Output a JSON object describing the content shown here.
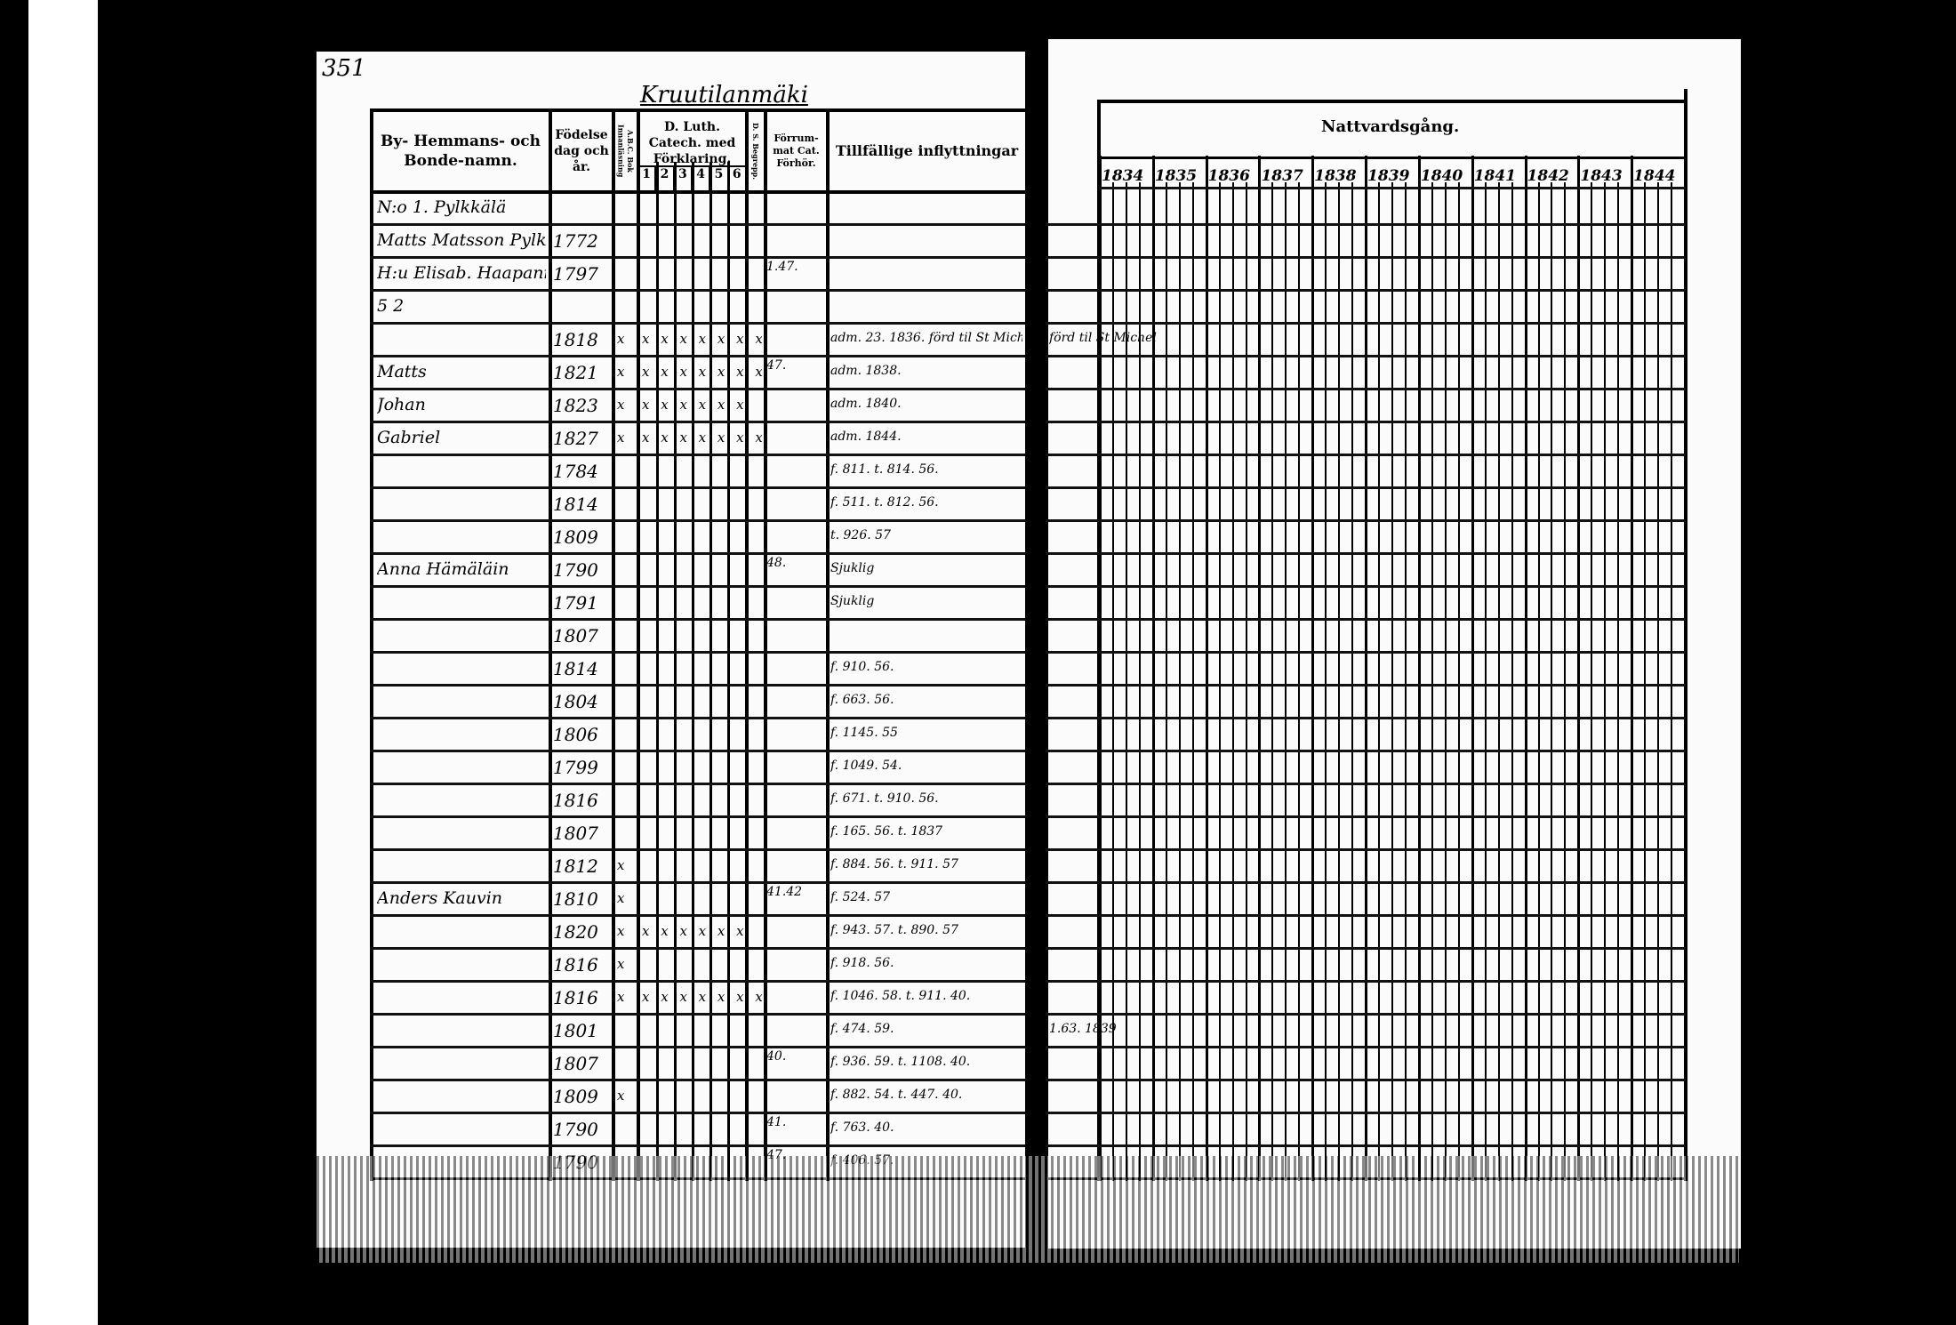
{
  "page_number": "351",
  "village": "Kruutilanmäki",
  "left_header": {
    "name_col": "By- Hemmans- och Bonde-namn.",
    "birth_col": "Födelse dag och år.",
    "abc_col": "A.B.C. Bok Innanläsning",
    "catechism_col": "D. Luth. Catech. med Förklaring.",
    "catechism_subcols": [
      "1",
      "2",
      "3",
      "4",
      "5",
      "6"
    ],
    "d_col": "D. S. Begrepp.",
    "forrum_col": "Förrum- mat Cat. Förhör.",
    "notes_col": "Tillfällige inflyttningar"
  },
  "right_header": {
    "title": "Nattvardsgång.",
    "years": [
      "1834",
      "1835",
      "1836",
      "1837",
      "1838",
      "1839",
      "1840",
      "1841",
      "1842",
      "1843",
      "1844"
    ]
  },
  "rows": [
    {
      "name": "N:o 1. Pylkkälä",
      "year": "",
      "abc": "",
      "cat": "",
      "forrum": "",
      "note": ""
    },
    {
      "name": "Matts Matsson Pylkkäri",
      "year": "1772",
      "abc": "",
      "cat": "",
      "forrum": "",
      "note": ""
    },
    {
      "name": "H:u Elisab. Haapaniemi",
      "year": "1797",
      "abc": "",
      "cat": "",
      "forrum": "1.47.",
      "note": ""
    },
    {
      "name": "5   2",
      "year": "",
      "abc": "",
      "cat": "",
      "forrum": "",
      "note": ""
    },
    {
      "name": "",
      "year": "1818",
      "abc": "x",
      "cat": "x x x x x x x",
      "forrum": "",
      "note": "adm. 23. 1836. förd til St Michel"
    },
    {
      "name": "Matts",
      "year": "1821",
      "abc": "x",
      "cat": "x x x x x x x",
      "forrum": "47.",
      "note": "adm. 1838."
    },
    {
      "name": "Johan",
      "year": "1823",
      "abc": "x",
      "cat": "x x x x x x",
      "forrum": "",
      "note": "adm. 1840."
    },
    {
      "name": "Gabriel",
      "year": "1827",
      "abc": "x",
      "cat": "x x x x x x x",
      "forrum": "",
      "note": "adm. 1844."
    },
    {
      "name": "",
      "year": "1784",
      "abc": "",
      "cat": "",
      "forrum": "",
      "note": "f. 811. t. 814. 56."
    },
    {
      "name": "",
      "year": "1814",
      "abc": "",
      "cat": "",
      "forrum": "",
      "note": "f. 511. t. 812. 56."
    },
    {
      "name": "",
      "year": "1809",
      "abc": "",
      "cat": "",
      "forrum": "",
      "note": "t. 926. 57"
    },
    {
      "name": "Anna Hämäläin",
      "year": "1790",
      "abc": "",
      "cat": "",
      "forrum": "48.",
      "note": "Sjuklig"
    },
    {
      "name": "",
      "year": "1791",
      "abc": "",
      "cat": "",
      "forrum": "",
      "note": "Sjuklig"
    },
    {
      "name": "",
      "year": "1807",
      "abc": "",
      "cat": "",
      "forrum": "",
      "note": ""
    },
    {
      "name": "",
      "year": "1814",
      "abc": "",
      "cat": "",
      "forrum": "",
      "note": "f. 910. 56."
    },
    {
      "name": "",
      "year": "1804",
      "abc": "",
      "cat": "",
      "forrum": "",
      "note": "f. 663. 56."
    },
    {
      "name": "",
      "year": "1806",
      "abc": "",
      "cat": "",
      "forrum": "",
      "note": "f. 1145. 55"
    },
    {
      "name": "",
      "year": "1799",
      "abc": "",
      "cat": "",
      "forrum": "",
      "note": "f. 1049. 54."
    },
    {
      "name": "",
      "year": "1816",
      "abc": "",
      "cat": "",
      "forrum": "",
      "note": "f. 671. t. 910. 56."
    },
    {
      "name": "",
      "year": "1807",
      "abc": "",
      "cat": "",
      "forrum": "",
      "note": "f. 165. 56. t. 1837"
    },
    {
      "name": "",
      "year": "1812",
      "abc": "x",
      "cat": "",
      "forrum": "",
      "note": "f. 884. 56. t. 911. 57"
    },
    {
      "name": "Anders Kauvin",
      "year": "1810",
      "abc": "x",
      "cat": "",
      "forrum": "41.42",
      "note": "f. 524. 57"
    },
    {
      "name": "",
      "year": "1820",
      "abc": "x",
      "cat": "x x x x x x",
      "forrum": "",
      "note": "f. 943. 57. t. 890. 57"
    },
    {
      "name": "",
      "year": "1816",
      "abc": "x",
      "cat": "",
      "forrum": "",
      "note": "f. 918. 56."
    },
    {
      "name": "",
      "year": "1816",
      "abc": "x",
      "cat": "x x x x x x x",
      "forrum": "",
      "note": "f. 1046. 58. t. 911. 40."
    },
    {
      "name": "",
      "year": "1801",
      "abc": "",
      "cat": "",
      "forrum": "",
      "note": "f. 474. 59."
    },
    {
      "name": "",
      "year": "1807",
      "abc": "",
      "cat": "",
      "forrum": "40.",
      "note": "f. 936. 59. t. 1108. 40."
    },
    {
      "name": "",
      "year": "1809",
      "abc": "x",
      "cat": "",
      "forrum": "",
      "note": "f. 882. 54. t. 447. 40."
    },
    {
      "name": "",
      "year": "1790",
      "abc": "",
      "cat": "",
      "forrum": "41.",
      "note": "f. 763. 40."
    },
    {
      "name": "",
      "year": "1790",
      "abc": "",
      "cat": "",
      "forrum": "47.",
      "note": "f. 406. 57."
    }
  ],
  "right_notes": [
    {
      "row": 4,
      "text": "förd til St Michel"
    },
    {
      "row": 25,
      "text": "1.63. 1839"
    }
  ]
}
